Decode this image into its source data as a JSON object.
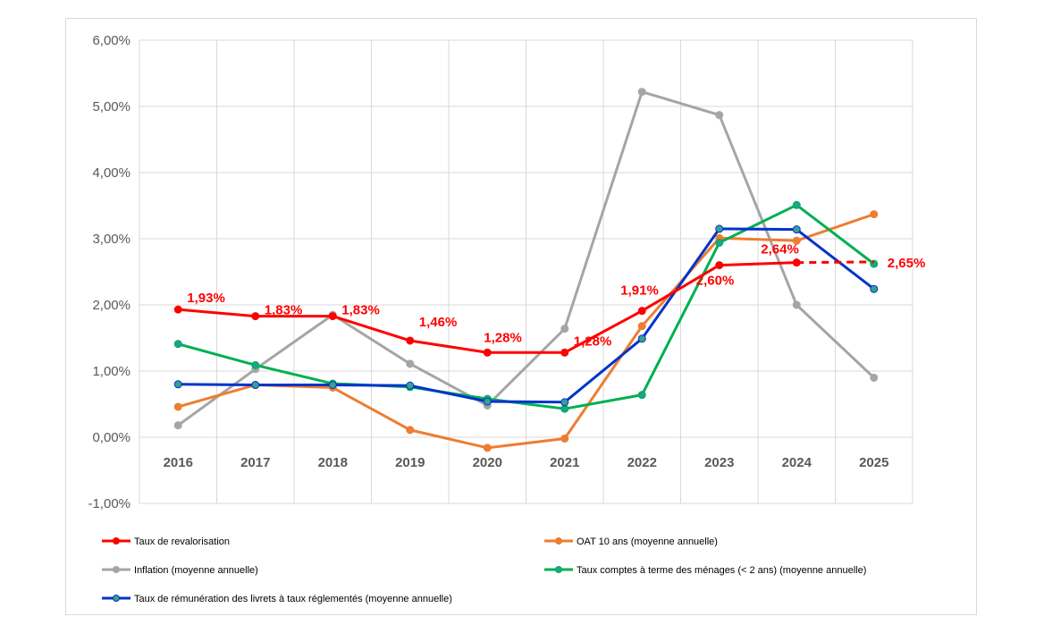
{
  "chart_data": {
    "type": "line",
    "categories": [
      "2016",
      "2017",
      "2018",
      "2019",
      "2020",
      "2021",
      "2022",
      "2023",
      "2024",
      "2025"
    ],
    "ylim": [
      -0.01,
      0.06
    ],
    "yticks": [
      "-1,00%",
      "0,00%",
      "1,00%",
      "2,00%",
      "3,00%",
      "4,00%",
      "5,00%",
      "6,00%"
    ],
    "grid": true,
    "legend_position": "bottom",
    "series": [
      {
        "name": "Taux de revalorisation",
        "color": "#ff0000",
        "values": [
          0.0193,
          0.0183,
          0.0183,
          0.0146,
          0.0128,
          0.0128,
          0.0191,
          0.026,
          0.0264,
          0.0265
        ],
        "dashed_last": true,
        "labels": [
          "1,93%",
          "1,83%",
          "1,83%",
          "1,46%",
          "1,28%",
          "1,28%",
          "1,91%",
          "2,60%",
          "2,64%",
          "2,65%"
        ]
      },
      {
        "name": "OAT 10 ans (moyenne annuelle)",
        "color": "#ed7d31",
        "values": [
          0.0046,
          0.0079,
          0.0075,
          0.0011,
          -0.0016,
          -0.0002,
          0.0168,
          0.0301,
          0.0297,
          0.0337
        ]
      },
      {
        "name": "Inflation (moyenne annuelle)",
        "color": "#a5a5a5",
        "values": [
          0.0018,
          0.0103,
          0.0185,
          0.0111,
          0.0048,
          0.0164,
          0.0522,
          0.0487,
          0.02,
          0.009
        ]
      },
      {
        "name": "Taux comptes à terme des ménages (< 2 ans) (moyenne annuelle)",
        "color": "#00b050",
        "marker": "#1fa38a",
        "values": [
          0.0141,
          0.0109,
          0.0081,
          0.0076,
          0.0058,
          0.0043,
          0.0064,
          0.0294,
          0.0351,
          0.0262
        ]
      },
      {
        "name": "Taux de rémunération des livrets à taux réglementés (moyenne annuelle)",
        "color": "#0033cc",
        "marker": "#3aa08c",
        "values": [
          0.008,
          0.0079,
          0.0079,
          0.0078,
          0.0054,
          0.0053,
          0.0149,
          0.0315,
          0.0314,
          0.0224
        ]
      }
    ]
  }
}
